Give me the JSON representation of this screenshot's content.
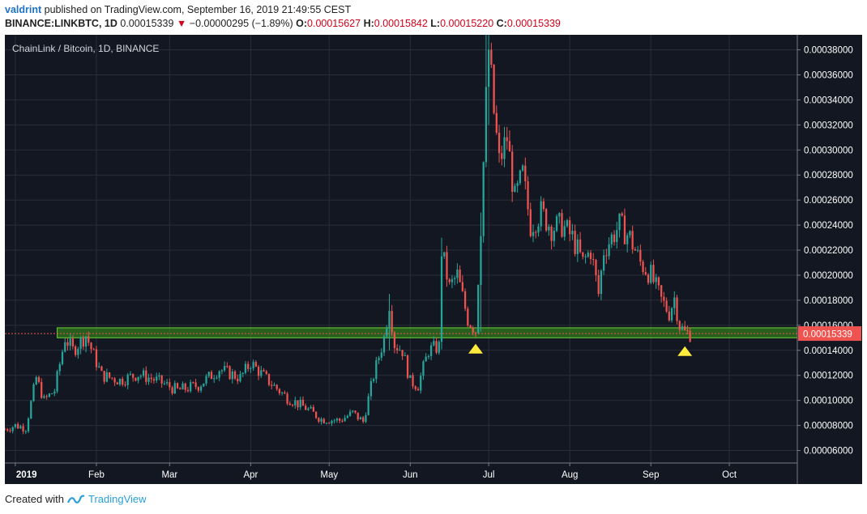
{
  "header": {
    "author": "valdrint",
    "published_text": " published on TradingView.com, September 16, 2019 21:49:55 CEST",
    "symbol": "BINANCE:LINKBTC, 1D",
    "last": "0.00015339",
    "change_arrow": "▼",
    "change": "−0.00000295 (−1.89%)",
    "o_label": "O:",
    "o_value": "0.00015627",
    "h_label": "H:",
    "h_value": "0.00015842",
    "l_label": "L:",
    "l_value": "0.00015220",
    "c_label": "C:",
    "c_value": "0.00015339"
  },
  "footer": {
    "created_with": "Created with",
    "brand": "TradingView"
  },
  "colors": {
    "background": "#131722",
    "grid": "#2a2e39",
    "up": "#26a69a",
    "down": "#ef5350",
    "zone_fill": "#3a9a1e",
    "zone_border": "#6ad435",
    "marker": "#ffeb3b",
    "price_label": "#ef5350",
    "axis_text": "#ffffff"
  },
  "chart_data": {
    "type": "candlestick",
    "title": "ChainLink / Bitcoin, 1D, BINANCE",
    "symbol": "LINKBTC",
    "exchange": "BINANCE",
    "interval": "1D",
    "ylim": [
      5e-05,
      0.000392
    ],
    "y_ticks": [
      "0.00006000",
      "0.00008000",
      "0.00010000",
      "0.00012000",
      "0.00014000",
      "0.00016000",
      "0.00018000",
      "0.00020000",
      "0.00022000",
      "0.00024000",
      "0.00026000",
      "0.00028000",
      "0.00030000",
      "0.00032000",
      "0.00034000",
      "0.00036000",
      "0.00038000"
    ],
    "x_range": [
      "2018-12-28",
      "2019-10-27"
    ],
    "x_ticks": [
      {
        "label": "2019",
        "date": "2019-01-01"
      },
      {
        "label": "Feb",
        "date": "2019-02-01"
      },
      {
        "label": "Mar",
        "date": "2019-03-01"
      },
      {
        "label": "Apr",
        "date": "2019-04-01"
      },
      {
        "label": "May",
        "date": "2019-05-01"
      },
      {
        "label": "Jun",
        "date": "2019-06-01"
      },
      {
        "label": "Jul",
        "date": "2019-07-01"
      },
      {
        "label": "Aug",
        "date": "2019-08-01"
      },
      {
        "label": "Sep",
        "date": "2019-09-01"
      },
      {
        "label": "Oct",
        "date": "2019-10-01"
      }
    ],
    "last_price": "0.00015339",
    "last_price_value": 0.00015339,
    "support_zone": {
      "from": "2019-01-17",
      "to": "2019-10-27",
      "low": 0.00015,
      "high": 0.000158
    },
    "markers": [
      {
        "date": "2019-06-26",
        "value": 0.000142,
        "shape": "triangle-up"
      },
      {
        "date": "2019-09-14",
        "value": 0.00014,
        "shape": "triangle-up"
      }
    ],
    "grid": true,
    "close_path": [
      [
        "2018-12-28",
        7.7e-05
      ],
      [
        "2019-01-01",
        8e-05
      ],
      [
        "2019-01-05",
        7.8e-05
      ],
      [
        "2019-01-09",
        0.000118
      ],
      [
        "2019-01-12",
        0.0001
      ],
      [
        "2019-01-16",
        0.000108
      ],
      [
        "2019-01-20",
        0.00015
      ],
      [
        "2019-01-23",
        0.00014
      ],
      [
        "2019-01-28",
        0.000152
      ],
      [
        "2019-02-03",
        0.00012
      ],
      [
        "2019-02-10",
        0.000116
      ],
      [
        "2019-02-17",
        0.000121
      ],
      [
        "2019-02-24",
        0.000116
      ],
      [
        "2019-03-04",
        0.000108
      ],
      [
        "2019-03-12",
        0.000112
      ],
      [
        "2019-03-20",
        0.000125
      ],
      [
        "2019-03-28",
        0.000118
      ],
      [
        "2019-04-01",
        0.00013
      ],
      [
        "2019-04-08",
        0.000115
      ],
      [
        "2019-04-15",
        0.000102
      ],
      [
        "2019-04-22",
        9.4e-05
      ],
      [
        "2019-04-28",
        8.5e-05
      ],
      [
        "2019-05-05",
        8.4e-05
      ],
      [
        "2019-05-10",
        9e-05
      ],
      [
        "2019-05-14",
        8.3e-05
      ],
      [
        "2019-05-18",
        0.00012
      ],
      [
        "2019-05-22",
        0.00015
      ],
      [
        "2019-05-24",
        0.000178
      ],
      [
        "2019-05-26",
        0.000145
      ],
      [
        "2019-05-29",
        0.00014
      ],
      [
        "2019-06-01",
        0.000115
      ],
      [
        "2019-06-04",
        0.000112
      ],
      [
        "2019-06-08",
        0.00014
      ],
      [
        "2019-06-12",
        0.000143
      ],
      [
        "2019-06-13",
        0.00022
      ],
      [
        "2019-06-16",
        0.00019
      ],
      [
        "2019-06-19",
        0.0002
      ],
      [
        "2019-06-23",
        0.000165
      ],
      [
        "2019-06-26",
        0.000156
      ],
      [
        "2019-06-28",
        0.00024
      ],
      [
        "2019-06-30",
        0.00034
      ],
      [
        "2019-07-01",
        0.00038
      ],
      [
        "2019-07-03",
        0.00033
      ],
      [
        "2019-07-05",
        0.00029
      ],
      [
        "2019-07-08",
        0.00031
      ],
      [
        "2019-07-11",
        0.00026
      ],
      [
        "2019-07-14",
        0.00028
      ],
      [
        "2019-07-17",
        0.00024
      ],
      [
        "2019-07-21",
        0.00025
      ],
      [
        "2019-07-25",
        0.000238
      ],
      [
        "2019-07-29",
        0.00024
      ],
      [
        "2019-08-02",
        0.00023
      ],
      [
        "2019-08-06",
        0.00021
      ],
      [
        "2019-08-09",
        0.00022
      ],
      [
        "2019-08-12",
        0.000185
      ],
      [
        "2019-08-14",
        0.00022
      ],
      [
        "2019-08-17",
        0.00023
      ],
      [
        "2019-08-20",
        0.00024
      ],
      [
        "2019-08-24",
        0.00023
      ],
      [
        "2019-08-28",
        0.00021
      ],
      [
        "2019-09-01",
        0.0002
      ],
      [
        "2019-09-05",
        0.00018
      ],
      [
        "2019-09-08",
        0.00017
      ],
      [
        "2019-09-10",
        0.000182
      ],
      [
        "2019-09-12",
        0.00016
      ],
      [
        "2019-09-14",
        0.000154
      ],
      [
        "2019-09-16",
        0.0001534
      ]
    ],
    "spikes": [
      {
        "date": "2019-06-30",
        "high": 0.000392,
        "low": 0.0003
      },
      {
        "date": "2019-07-01",
        "high": 0.000392,
        "low": 0.00032
      },
      {
        "date": "2019-05-24",
        "high": 0.000185,
        "low": 0.00014
      },
      {
        "date": "2019-06-13",
        "high": 0.00023,
        "low": 0.000145
      },
      {
        "date": "2019-06-28",
        "high": 0.00025,
        "low": 0.000155
      }
    ]
  }
}
